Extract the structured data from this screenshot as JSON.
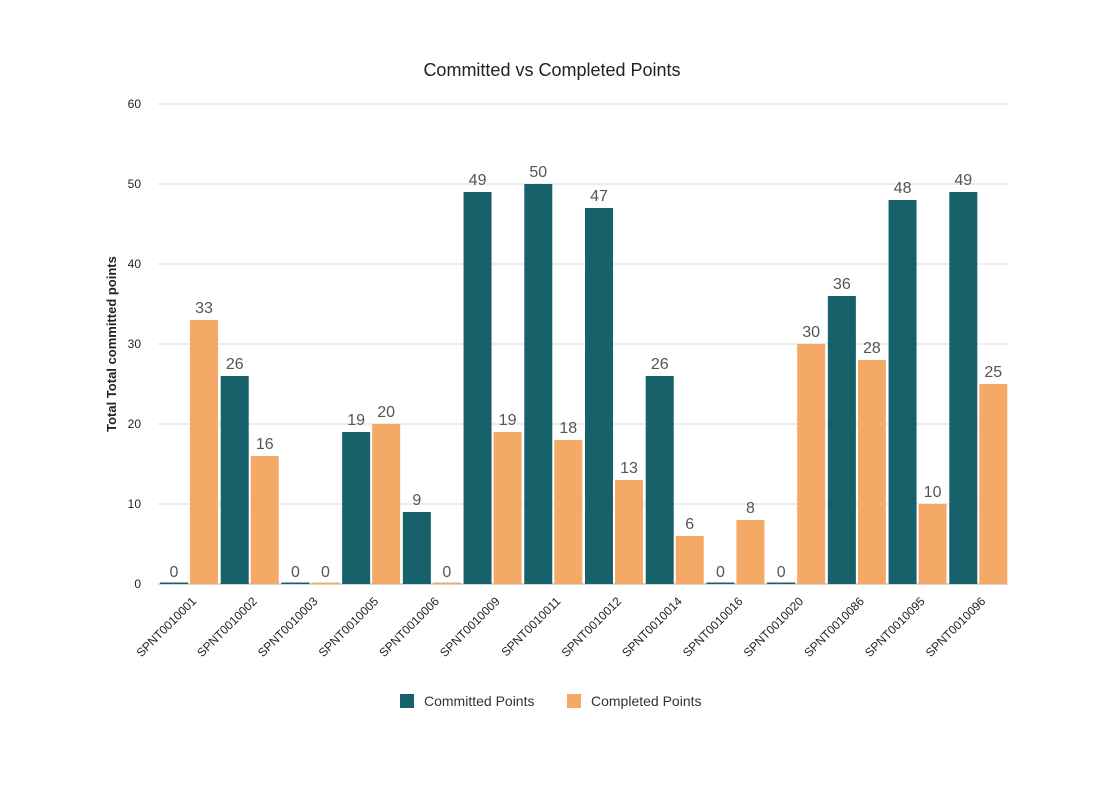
{
  "chart_data": {
    "type": "bar",
    "title": "Committed vs Completed Points",
    "xlabel": "",
    "ylabel": "Total Total committed points",
    "ylim": [
      0,
      60
    ],
    "yticks": [
      0,
      10,
      20,
      30,
      40,
      50,
      60
    ],
    "grid": true,
    "legend_position": "bottom",
    "categories": [
      "SPNT0010001",
      "SPNT0010002",
      "SPNT0010003",
      "SPNT0010005",
      "SPNT0010006",
      "SPNT0010009",
      "SPNT0010011",
      "SPNT0010012",
      "SPNT0010014",
      "SPNT0010016",
      "SPNT0010020",
      "SPNT0010086",
      "SPNT0010095",
      "SPNT0010096"
    ],
    "series": [
      {
        "name": "Committed Points",
        "color": "#17616b",
        "values": [
          0,
          26,
          0,
          19,
          9,
          49,
          50,
          47,
          26,
          0,
          0,
          36,
          48,
          49
        ]
      },
      {
        "name": "Completed Points",
        "color": "#f5a967",
        "values": [
          33,
          16,
          0,
          20,
          0,
          19,
          18,
          13,
          6,
          8,
          30,
          28,
          10,
          25
        ]
      }
    ]
  }
}
